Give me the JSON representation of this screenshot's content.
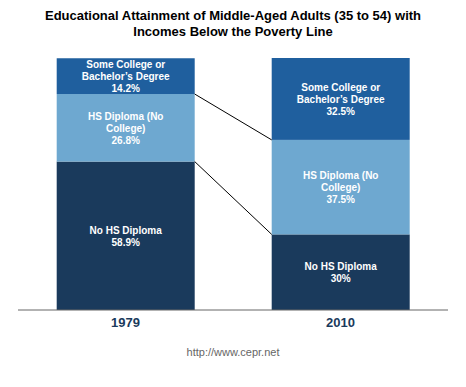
{
  "chart_data": {
    "type": "bar",
    "title": "Educational Attainment of Middle-Aged Adults (35 to 54) with\nIncomes Below the Poverty Line",
    "categories": [
      "1979",
      "2010"
    ],
    "series": [
      {
        "name": "No HS Diploma",
        "color": "#1a3a5c",
        "values": [
          58.9,
          30.0
        ],
        "value_labels": [
          "58.9%",
          "30%"
        ]
      },
      {
        "name": "HS Diploma (No\nCollege)",
        "color": "#6ea8d0",
        "values": [
          26.8,
          37.5
        ],
        "value_labels": [
          "26.8%",
          "37.5%"
        ]
      },
      {
        "name": "Some College or\nBachelor’s Degree",
        "color": "#1f5f9e",
        "values": [
          14.2,
          32.5
        ],
        "value_labels": [
          "14.2%",
          "32.5%"
        ]
      }
    ],
    "ylim": [
      0,
      100
    ],
    "stacked": true,
    "data_labels": true,
    "tick_labels": "x",
    "grid": false,
    "annotations": [
      "http://www.cepr.net"
    ]
  }
}
